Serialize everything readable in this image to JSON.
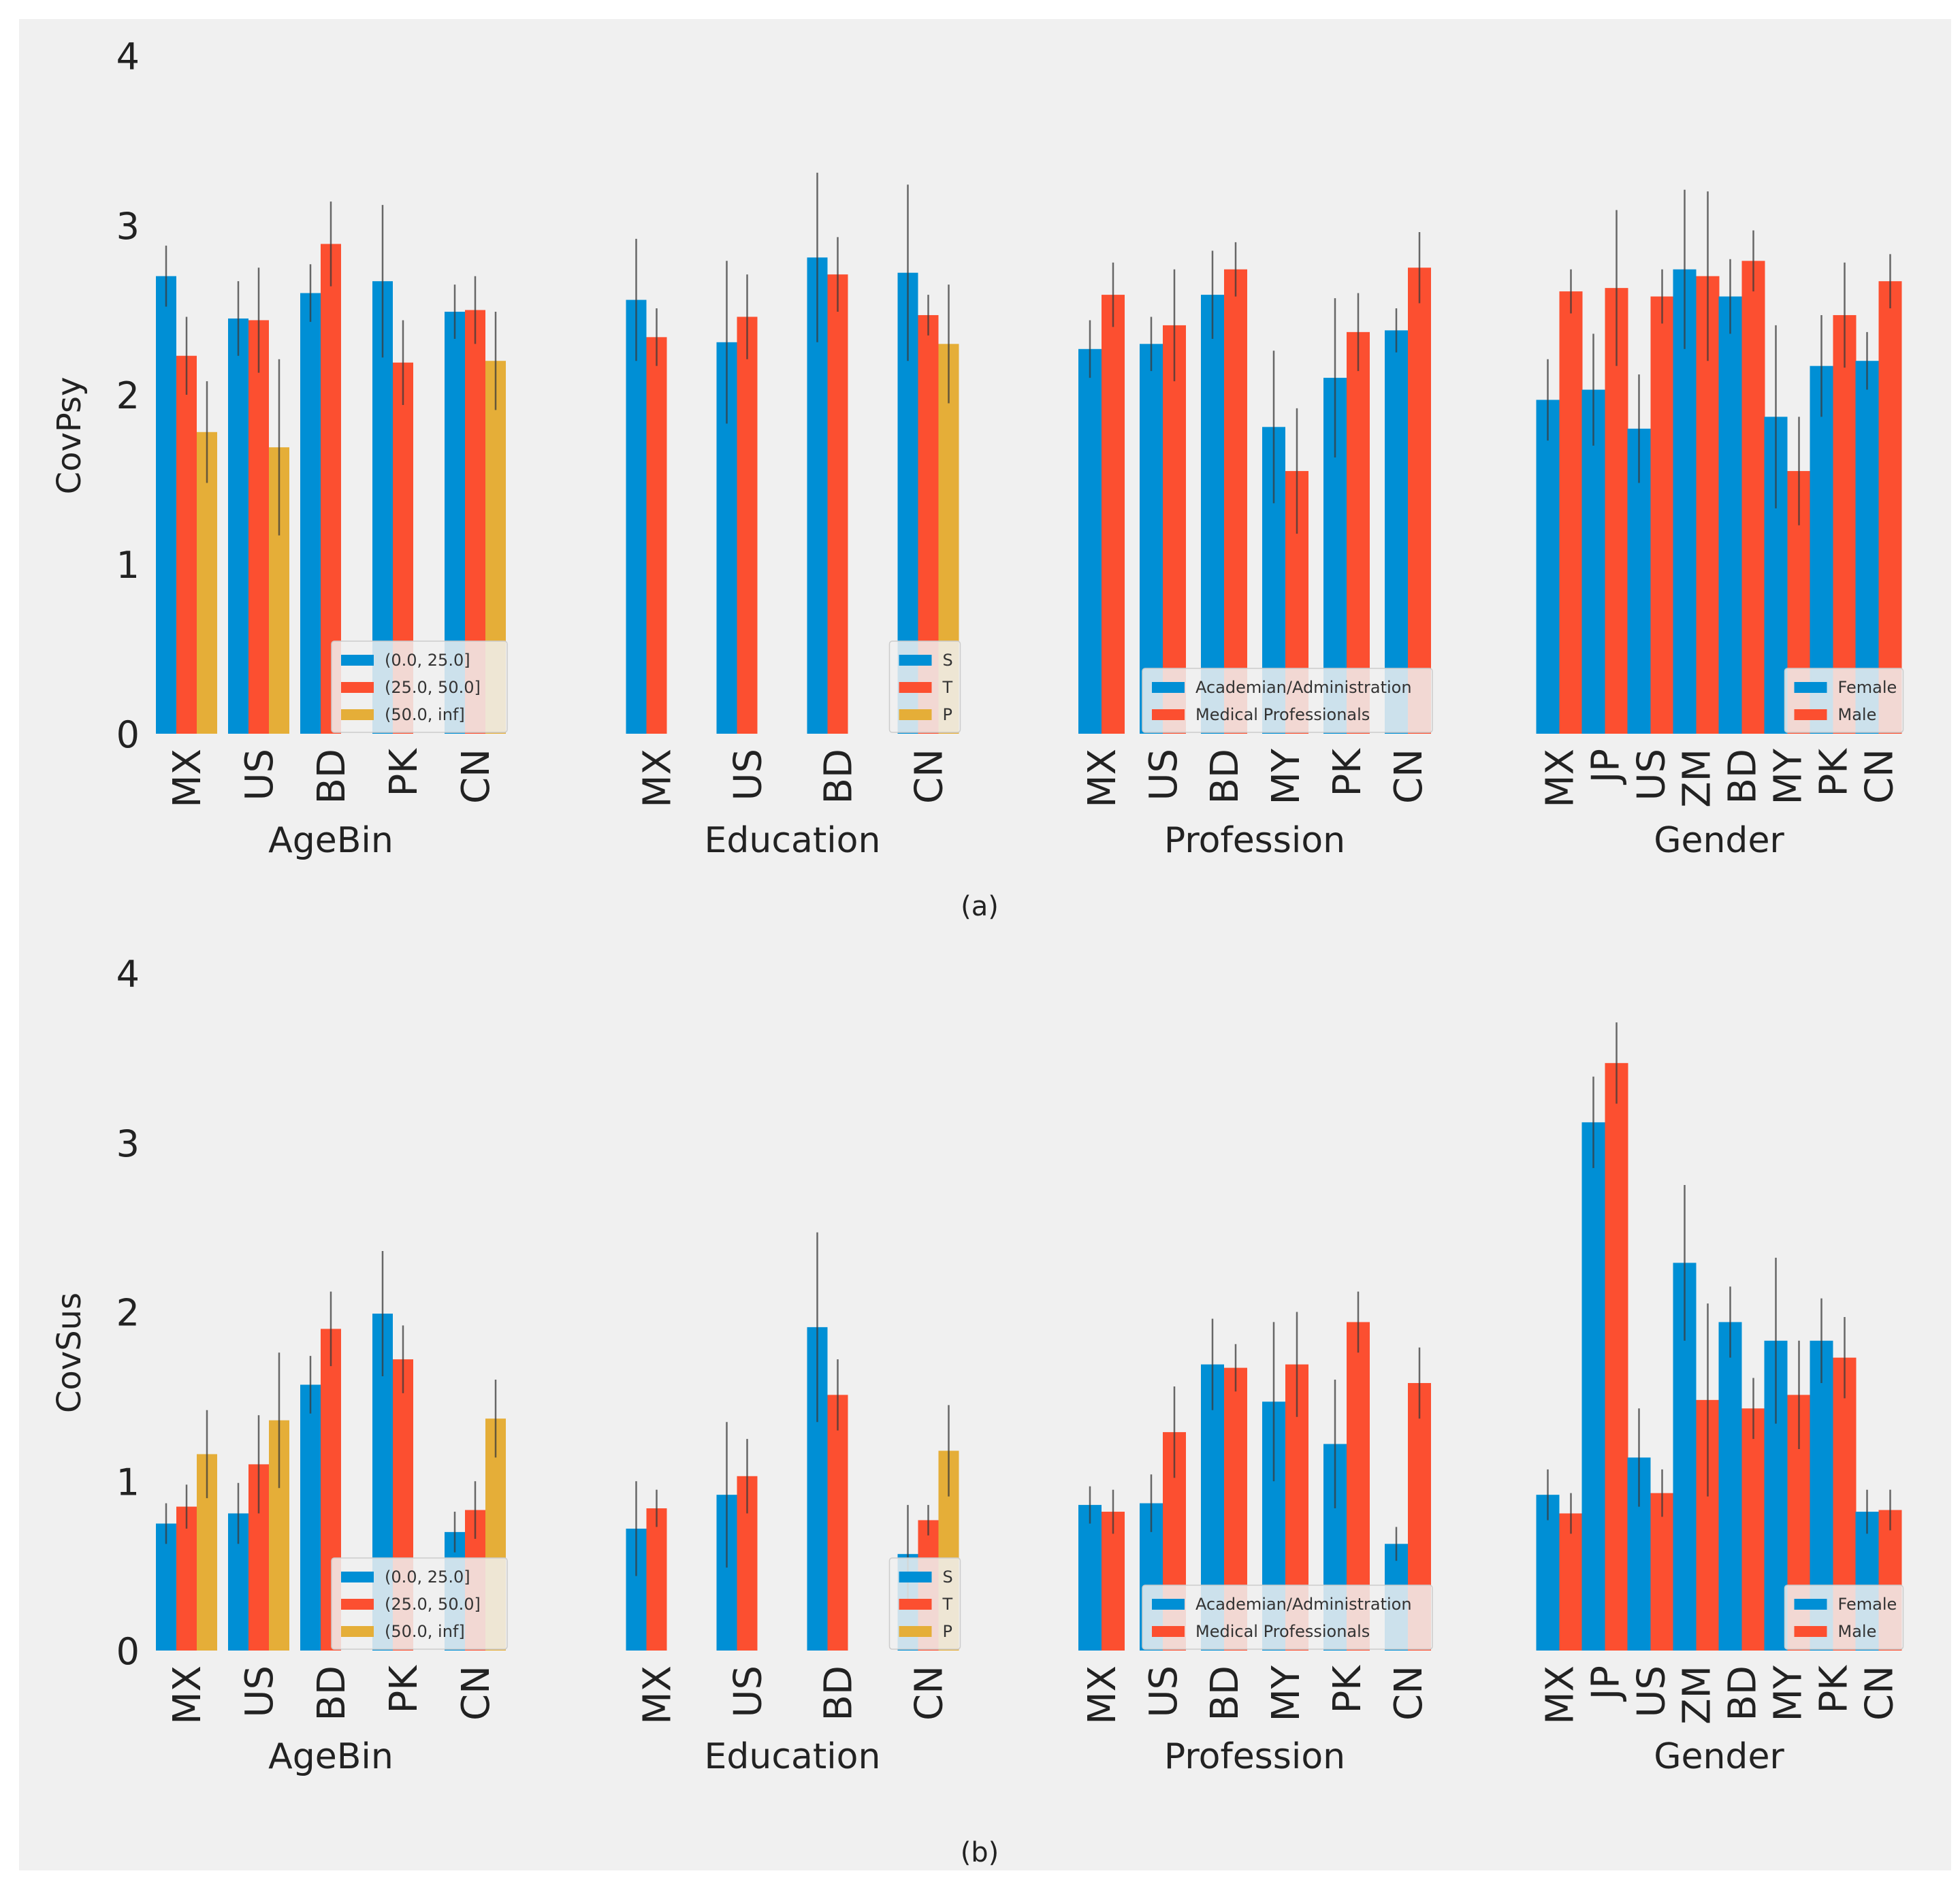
{
  "colors": {
    "blue": "#008FD5",
    "red": "#FC4F30",
    "yellow": "#E5AE38",
    "background": "#F0F0F0",
    "errorbar": "#3a3a3a"
  },
  "chart_data": [
    {
      "id": "a",
      "type": "bar",
      "caption": "(a)",
      "ylabel": "CovPsy",
      "ylim": [
        0,
        4
      ],
      "yticks": [
        0,
        1,
        2,
        3,
        4
      ],
      "grid": false,
      "groups": [
        {
          "label": "AgeBin",
          "categories": [
            "MX",
            "US",
            "BD",
            "PK",
            "CN"
          ],
          "legend_position": "bottom-right",
          "series": [
            {
              "name": "(0.0, 25.0]",
              "color": "blue",
              "values": [
                2.7,
                2.45,
                2.6,
                2.67,
                2.49
              ],
              "errors": [
                0.18,
                0.22,
                0.17,
                0.45,
                0.16
              ]
            },
            {
              "name": "(25.0, 50.0]",
              "color": "red",
              "values": [
                2.23,
                2.44,
                2.89,
                2.19,
                2.5
              ],
              "errors": [
                0.23,
                0.31,
                0.25,
                0.25,
                0.2
              ]
            },
            {
              "name": "(50.0, inf]",
              "color": "yellow",
              "values": [
                1.78,
                1.69,
                null,
                null,
                2.2
              ],
              "errors": [
                0.3,
                0.52,
                null,
                null,
                0.29
              ]
            }
          ]
        },
        {
          "label": "Education",
          "categories": [
            "MX",
            "US",
            "BD",
            "CN"
          ],
          "legend_position": "bottom-right",
          "series": [
            {
              "name": "S",
              "color": "blue",
              "values": [
                2.56,
                2.31,
                2.81,
                2.72
              ],
              "errors": [
                0.36,
                0.48,
                0.5,
                0.52
              ]
            },
            {
              "name": "T",
              "color": "red",
              "values": [
                2.34,
                2.46,
                2.71,
                2.47
              ],
              "errors": [
                0.17,
                0.25,
                0.22,
                0.12
              ]
            },
            {
              "name": "P",
              "color": "yellow",
              "values": [
                null,
                null,
                null,
                2.3
              ],
              "errors": [
                null,
                null,
                null,
                0.35
              ]
            }
          ]
        },
        {
          "label": "Profession",
          "categories": [
            "MX",
            "US",
            "BD",
            "MY",
            "PK",
            "CN"
          ],
          "legend_position": "bottom-right",
          "series": [
            {
              "name": "Academian/Administration",
              "color": "blue",
              "values": [
                2.27,
                2.3,
                2.59,
                1.81,
                2.1,
                2.38
              ],
              "errors": [
                0.17,
                0.16,
                0.26,
                0.45,
                0.47,
                0.13
              ]
            },
            {
              "name": "Medical Professionals",
              "color": "red",
              "values": [
                2.59,
                2.41,
                2.74,
                1.55,
                2.37,
                2.75
              ],
              "errors": [
                0.19,
                0.33,
                0.16,
                0.37,
                0.23,
                0.21
              ]
            }
          ]
        },
        {
          "label": "Gender",
          "categories": [
            "MX",
            "JP",
            "US",
            "ZM",
            "BD",
            "MY",
            "PK",
            "CN"
          ],
          "legend_position": "bottom-right",
          "series": [
            {
              "name": "Female",
              "color": "blue",
              "values": [
                1.97,
                2.03,
                1.8,
                2.74,
                2.58,
                1.87,
                2.17,
                2.2
              ],
              "errors": [
                0.24,
                0.33,
                0.32,
                0.47,
                0.22,
                0.54,
                0.3,
                0.17
              ]
            },
            {
              "name": "Male",
              "color": "red",
              "values": [
                2.61,
                2.63,
                2.58,
                2.7,
                2.79,
                1.55,
                2.47,
                2.67
              ],
              "errors": [
                0.13,
                0.46,
                0.16,
                0.5,
                0.18,
                0.32,
                0.31,
                0.16
              ]
            }
          ]
        }
      ]
    },
    {
      "id": "b",
      "type": "bar",
      "caption": "(b)",
      "ylabel": "CovSus",
      "ylim": [
        0,
        4
      ],
      "yticks": [
        0,
        1,
        2,
        3,
        4
      ],
      "grid": false,
      "groups": [
        {
          "label": "AgeBin",
          "categories": [
            "MX",
            "US",
            "BD",
            "PK",
            "CN"
          ],
          "legend_position": "bottom-right",
          "series": [
            {
              "name": "(0.0, 25.0]",
              "color": "blue",
              "values": [
                0.75,
                0.81,
                1.57,
                1.99,
                0.7
              ],
              "errors": [
                0.12,
                0.18,
                0.17,
                0.37,
                0.12
              ]
            },
            {
              "name": "(25.0, 50.0]",
              "color": "red",
              "values": [
                0.85,
                1.1,
                1.9,
                1.72,
                0.83
              ],
              "errors": [
                0.13,
                0.29,
                0.22,
                0.2,
                0.17
              ]
            },
            {
              "name": "(50.0, inf]",
              "color": "yellow",
              "values": [
                1.16,
                1.36,
                null,
                null,
                1.37
              ],
              "errors": [
                0.26,
                0.4,
                null,
                null,
                0.23
              ]
            }
          ]
        },
        {
          "label": "Education",
          "categories": [
            "MX",
            "US",
            "BD",
            "CN"
          ],
          "legend_position": "bottom-right",
          "series": [
            {
              "name": "S",
              "color": "blue",
              "values": [
                0.72,
                0.92,
                1.91,
                0.57
              ],
              "errors": [
                0.28,
                0.43,
                0.56,
                0.29
              ]
            },
            {
              "name": "T",
              "color": "red",
              "values": [
                0.84,
                1.03,
                1.51,
                0.77
              ],
              "errors": [
                0.11,
                0.22,
                0.21,
                0.09
              ]
            },
            {
              "name": "P",
              "color": "yellow",
              "values": [
                null,
                null,
                null,
                1.18
              ],
              "errors": [
                null,
                null,
                null,
                0.27
              ]
            }
          ]
        },
        {
          "label": "Profession",
          "categories": [
            "MX",
            "US",
            "BD",
            "MY",
            "PK",
            "CN"
          ],
          "legend_position": "bottom-right",
          "series": [
            {
              "name": "Academian/Administration",
              "color": "blue",
              "values": [
                0.86,
                0.87,
                1.69,
                1.47,
                1.22,
                0.63
              ],
              "errors": [
                0.11,
                0.17,
                0.27,
                0.47,
                0.38,
                0.1
              ]
            },
            {
              "name": "Medical Professionals",
              "color": "red",
              "values": [
                0.82,
                1.29,
                1.67,
                1.69,
                1.94,
                1.58
              ],
              "errors": [
                0.13,
                0.27,
                0.14,
                0.31,
                0.18,
                0.21
              ]
            }
          ]
        },
        {
          "label": "Gender",
          "categories": [
            "MX",
            "JP",
            "US",
            "ZM",
            "BD",
            "MY",
            "PK",
            "CN"
          ],
          "legend_position": "bottom-right",
          "series": [
            {
              "name": "Female",
              "color": "blue",
              "values": [
                0.92,
                3.12,
                1.14,
                2.29,
                1.94,
                1.83,
                1.83,
                0.82
              ],
              "errors": [
                0.15,
                0.27,
                0.29,
                0.46,
                0.21,
                0.49,
                0.25,
                0.13
              ]
            },
            {
              "name": "Male",
              "color": "red",
              "values": [
                0.81,
                3.47,
                0.93,
                1.48,
                1.43,
                1.51,
                1.73,
                0.83
              ],
              "errors": [
                0.12,
                0.24,
                0.14,
                0.57,
                0.18,
                0.32,
                0.24,
                0.12
              ]
            }
          ]
        }
      ]
    }
  ]
}
